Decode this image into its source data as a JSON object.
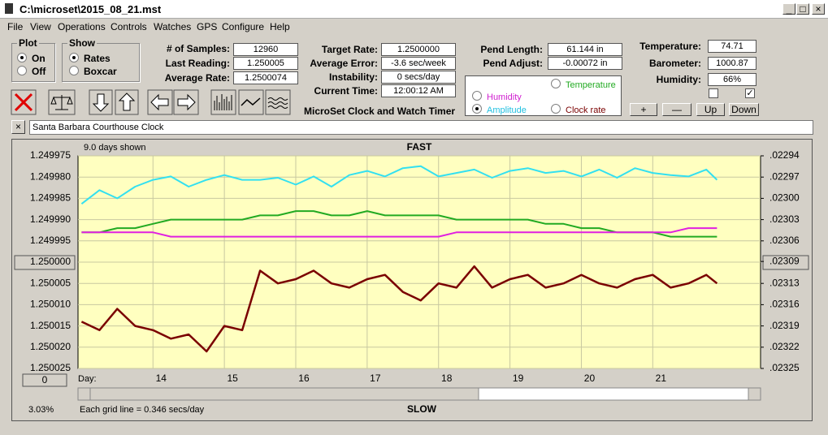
{
  "window": {
    "title": "C:\\microset\\2015_08_21.mst"
  },
  "menu": [
    "File",
    "View",
    "Operations",
    "Controls",
    "Watches",
    "GPS",
    "Configure",
    "Help"
  ],
  "plot_group": {
    "title": "Plot",
    "options": [
      "On",
      "Off"
    ]
  },
  "show_group": {
    "title": "Show",
    "options": [
      "Rates",
      "Boxcar"
    ]
  },
  "readings": {
    "labels": [
      "# of Samples:",
      "Last Reading:",
      "Average Rate:"
    ],
    "values": [
      "12960",
      "1.250005",
      "1.2500074"
    ]
  },
  "rates": {
    "labels": [
      "Target Rate:",
      "Average Error:",
      "Instability:",
      "Current Time:"
    ],
    "values": [
      "1.2500000",
      "-3.6 sec/week",
      "0 secs/day",
      "12:00:12 AM"
    ]
  },
  "app_name": "MicroSet Clock and Watch Timer",
  "pendulum": {
    "labels": [
      "Pend Length:",
      "Pend Adjust:"
    ],
    "values": [
      "61.144 in",
      "-0.00072 in"
    ]
  },
  "trace_options": [
    "Temperature",
    "Humidity",
    "Amplitude",
    "Clock rate"
  ],
  "environment": {
    "labels": [
      "Temperature:",
      "Barometer:",
      "Humidity:"
    ],
    "values": [
      "74.71",
      "1000.87",
      "66%"
    ]
  },
  "buttons": [
    "+",
    "—",
    "Up",
    "Down"
  ],
  "clock_name": "Santa Barbara Courthouse Clock",
  "chart_data": {
    "type": "line",
    "days_shown": "9.0 days shown",
    "top_label": "FAST",
    "bottom_label": "SLOW",
    "grid_note": "Each grid line = 0.346 secs/day",
    "percent": "3.03%",
    "x_label": "Day:",
    "scroll_value": "0",
    "xlim": [
      12.95,
      22.51
    ],
    "xticks": [
      14,
      15,
      16,
      17,
      18,
      19,
      20,
      21
    ],
    "ylim": [
      1.249975,
      1.250025
    ],
    "y_inverted": true,
    "yticks": [
      {
        "value": 1.249975,
        "label": "1.249975"
      },
      {
        "value": 1.24998,
        "label": "1.249980"
      },
      {
        "value": 1.249985,
        "label": "1.249985"
      },
      {
        "value": 1.24999,
        "label": "1.249990"
      },
      {
        "value": 1.249995,
        "label": "1.249995"
      },
      {
        "value": 1.25,
        "label": "1.250000"
      },
      {
        "value": 1.250005,
        "label": "1.250005"
      },
      {
        "value": 1.25001,
        "label": "1.250010"
      },
      {
        "value": 1.250015,
        "label": "1.250015"
      },
      {
        "value": 1.25002,
        "label": "1.250020"
      },
      {
        "value": 1.250025,
        "label": "1.250025"
      }
    ],
    "y2lim": [
      0.02294,
      0.02325
    ],
    "y2ticks": [
      {
        "value": 0.02294,
        "label": ".02294"
      },
      {
        "value": 0.022971,
        "label": ".02297"
      },
      {
        "value": 0.023002,
        "label": ".02300"
      },
      {
        "value": 0.023033,
        "label": ".02303"
      },
      {
        "value": 0.023064,
        "label": ".02306"
      },
      {
        "value": 0.023094,
        "label": ".02309"
      },
      {
        "value": 0.023126,
        "label": ".02313"
      },
      {
        "value": 0.023157,
        "label": ".02316"
      },
      {
        "value": 0.023188,
        "label": ".02319"
      },
      {
        "value": 0.023219,
        "label": ".02322"
      },
      {
        "value": 0.02325,
        "label": ".02325"
      }
    ],
    "grid": true,
    "x": [
      13.0,
      13.25,
      13.5,
      13.75,
      14.0,
      14.25,
      14.5,
      14.75,
      15.0,
      15.25,
      15.5,
      15.75,
      16.0,
      16.25,
      16.5,
      16.75,
      17.0,
      17.25,
      17.5,
      17.75,
      18.0,
      18.25,
      18.5,
      18.75,
      19.0,
      19.25,
      19.5,
      19.75,
      20.0,
      20.25,
      20.5,
      20.75,
      21.0,
      21.25,
      21.5,
      21.75,
      21.9
    ],
    "series": [
      {
        "color": "#33e0f0",
        "axis": "y2",
        "values": [
          0.02301,
          0.02299,
          0.023002,
          0.022985,
          0.022975,
          0.02297,
          0.022985,
          0.022975,
          0.022968,
          0.022975,
          0.022975,
          0.022972,
          0.022982,
          0.02297,
          0.022985,
          0.022968,
          0.022962,
          0.02297,
          0.022958,
          0.022955,
          0.02297,
          0.022965,
          0.02296,
          0.022972,
          0.022962,
          0.022958,
          0.022965,
          0.022962,
          0.02297,
          0.02296,
          0.022972,
          0.022958,
          0.022965,
          0.022968,
          0.02297,
          0.02296,
          0.022975
        ]
      },
      {
        "color": "#22aa22",
        "values": [
          1.249993,
          1.249993,
          1.249992,
          1.249992,
          1.249991,
          1.24999,
          1.24999,
          1.24999,
          1.24999,
          1.24999,
          1.249989,
          1.249989,
          1.249988,
          1.249988,
          1.249989,
          1.249989,
          1.249988,
          1.249989,
          1.249989,
          1.249989,
          1.249989,
          1.24999,
          1.24999,
          1.24999,
          1.24999,
          1.24999,
          1.249991,
          1.249991,
          1.249992,
          1.249992,
          1.249993,
          1.249993,
          1.249993,
          1.249994,
          1.249994,
          1.249994,
          1.249994
        ]
      },
      {
        "color": "#e020e0",
        "values": [
          1.249993,
          1.249993,
          1.249993,
          1.249993,
          1.249993,
          1.249994,
          1.249994,
          1.249994,
          1.249994,
          1.249994,
          1.249994,
          1.249994,
          1.249994,
          1.249994,
          1.249994,
          1.249994,
          1.249994,
          1.249994,
          1.249994,
          1.249994,
          1.249994,
          1.249993,
          1.249993,
          1.249993,
          1.249993,
          1.249993,
          1.249993,
          1.249993,
          1.249993,
          1.249993,
          1.249993,
          1.249993,
          1.249993,
          1.249993,
          1.249992,
          1.249992,
          1.249992
        ]
      },
      {
        "color": "#7a0000",
        "values": [
          1.250014,
          1.250016,
          1.250011,
          1.250015,
          1.250016,
          1.250018,
          1.250017,
          1.250021,
          1.250015,
          1.250016,
          1.250002,
          1.250005,
          1.250004,
          1.250002,
          1.250005,
          1.250006,
          1.250004,
          1.250003,
          1.250007,
          1.250009,
          1.250005,
          1.250006,
          1.250001,
          1.250006,
          1.250004,
          1.250003,
          1.250006,
          1.250005,
          1.250003,
          1.250005,
          1.250006,
          1.250004,
          1.250003,
          1.250006,
          1.250005,
          1.250003,
          1.250005
        ]
      }
    ]
  }
}
